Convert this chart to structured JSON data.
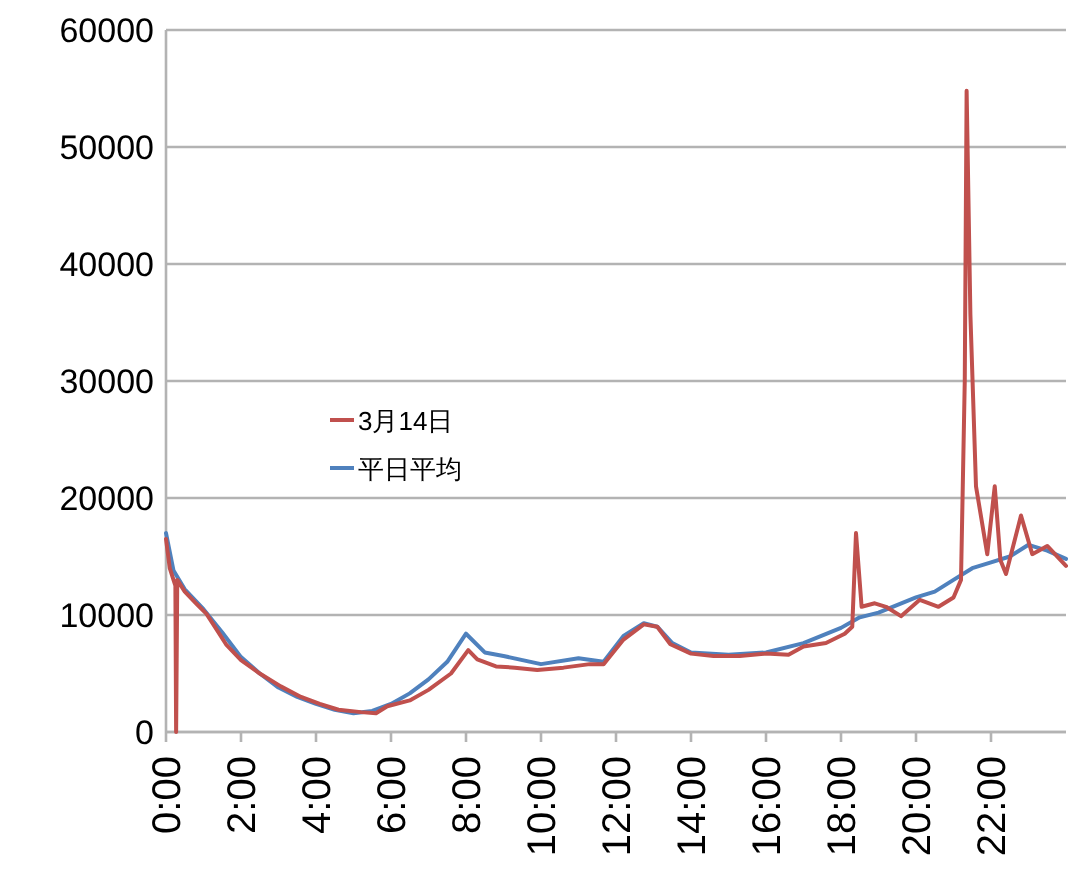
{
  "chart_data": {
    "type": "line",
    "xlim": [
      0,
      24
    ],
    "ylim": [
      0,
      60000
    ],
    "xticks": [
      {
        "value": 0,
        "label": "0:00"
      },
      {
        "value": 2,
        "label": "2:00"
      },
      {
        "value": 4,
        "label": "4:00"
      },
      {
        "value": 6,
        "label": "6:00"
      },
      {
        "value": 8,
        "label": "8:00"
      },
      {
        "value": 10,
        "label": "10:00"
      },
      {
        "value": 12,
        "label": "12:00"
      },
      {
        "value": 14,
        "label": "14:00"
      },
      {
        "value": 16,
        "label": "16:00"
      },
      {
        "value": 18,
        "label": "18:00"
      },
      {
        "value": 20,
        "label": "20:00"
      },
      {
        "value": 22,
        "label": "22:00"
      }
    ],
    "yticks": [
      0,
      10000,
      20000,
      30000,
      40000,
      50000,
      60000
    ],
    "grid": "y",
    "legend": "left",
    "marker": "none",
    "line_style": "solid",
    "series": [
      {
        "name": "3月14日",
        "color": "#c0504d",
        "x": [
          0,
          0.1,
          0.2,
          0.25,
          0.27,
          0.3,
          0.5,
          0.8,
          1.08,
          1.3,
          1.6,
          2.0,
          2.5,
          3.06,
          3.6,
          4.1,
          4.6,
          5.2,
          5.6,
          5.9,
          6.5,
          7.0,
          7.6,
          8.06,
          8.3,
          8.8,
          9.3,
          9.9,
          10.6,
          11.3,
          11.67,
          12.2,
          12.74,
          13.1,
          13.45,
          14.0,
          14.6,
          15.3,
          16.0,
          16.6,
          17.0,
          17.6,
          18.1,
          18.3,
          18.4,
          18.55,
          18.9,
          19.2,
          19.6,
          20.1,
          20.6,
          21.0,
          21.2,
          21.3,
          21.35,
          21.45,
          21.6,
          21.9,
          22.1,
          22.25,
          22.4,
          22.8,
          23.1,
          23.5,
          24
        ],
        "values": [
          16500,
          14000,
          13000,
          12500,
          0,
          13000,
          12000,
          11000,
          10100,
          9000,
          7500,
          6150,
          5000,
          3900,
          3000,
          2400,
          1900,
          1700,
          1600,
          2200,
          2700,
          3600,
          5000,
          7000,
          6200,
          5600,
          5500,
          5300,
          5500,
          5800,
          5800,
          7900,
          9200,
          9000,
          7500,
          6700,
          6500,
          6500,
          6700,
          6600,
          7300,
          7600,
          8400,
          9000,
          17000,
          10700,
          11000,
          10700,
          9900,
          11300,
          10700,
          11500,
          13000,
          30000,
          54800,
          35700,
          21000,
          15200,
          21000,
          14700,
          13500,
          18500,
          15200,
          15900,
          14200
        ]
      },
      {
        "name": "平日平均",
        "color": "#4f81bd",
        "x": [
          0,
          0.2,
          0.5,
          1.0,
          1.5,
          2.0,
          2.5,
          3.0,
          3.5,
          4.0,
          4.5,
          5.0,
          5.5,
          6.0,
          6.5,
          7.0,
          7.5,
          8.0,
          8.5,
          9.0,
          10.0,
          11.0,
          11.67,
          12.2,
          12.74,
          13.1,
          13.5,
          14.0,
          15.0,
          16.0,
          17.0,
          18.0,
          18.5,
          19.0,
          20.0,
          20.5,
          21.0,
          21.5,
          22.0,
          22.5,
          23.0,
          23.5,
          24
        ],
        "values": [
          17000,
          13800,
          12200,
          10500,
          8500,
          6400,
          5000,
          3800,
          3000,
          2400,
          1900,
          1600,
          1800,
          2400,
          3300,
          4500,
          6000,
          8400,
          6800,
          6500,
          5800,
          6300,
          6000,
          8200,
          9300,
          9000,
          7600,
          6800,
          6600,
          6800,
          7600,
          8900,
          9800,
          10200,
          11500,
          12000,
          13000,
          14000,
          14500,
          15000,
          16000,
          15500,
          14800
        ]
      }
    ]
  }
}
